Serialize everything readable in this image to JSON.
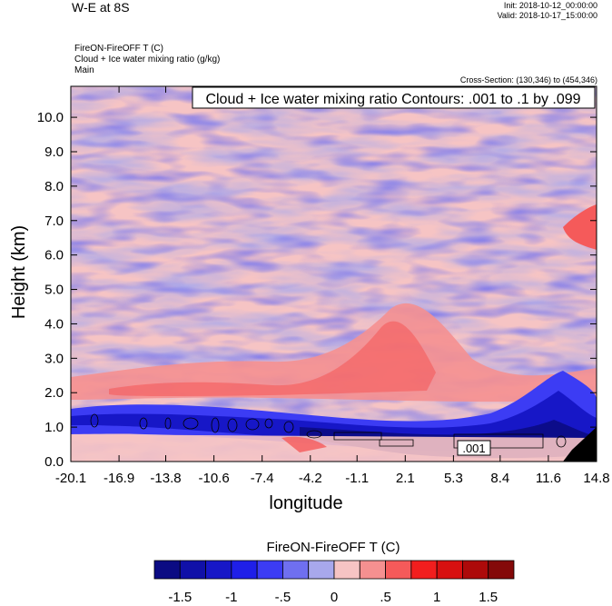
{
  "header": {
    "title": "W-E at 8S",
    "init": "Init: 2018-10-12_00:00:00",
    "valid": "Valid: 2018-10-17_15:00:00",
    "field_line1": "FireON-FireOFF T   (C)",
    "field_line2": "Cloud + Ice water mixing ratio   (g/kg)",
    "field_line3": "Main",
    "cross_section": "Cross-Section: (130,346) to (454,346)"
  },
  "chart_data": {
    "type": "heatmap",
    "title": "W-E at 8S",
    "xlabel": "longitude",
    "ylabel": "Height (km)",
    "x_ticks": [
      "-20.1",
      "-16.9",
      "-13.8",
      "-10.6",
      "-7.4",
      "-4.2",
      "-1.1",
      "2.1",
      "5.3",
      "8.4",
      "11.6",
      "14.8"
    ],
    "y_ticks": [
      "0.0",
      "1.0",
      "2.0",
      "3.0",
      "4.0",
      "5.0",
      "6.0",
      "7.0",
      "8.0",
      "9.0",
      "10.0"
    ],
    "xlim": [
      -20.1,
      14.8
    ],
    "ylim": [
      0.0,
      10.9
    ],
    "contour_annotation": "Cloud + Ice water mixing ratio Contours: .001 to .1 by .099",
    "contour_label": ".001",
    "colorbar": {
      "title": "FireON-FireOFF T  (C)",
      "labels": [
        "-1.5",
        "-1",
        "-.5",
        "0",
        ".5",
        "1",
        "1.5"
      ],
      "colors": [
        "#0b0b83",
        "#1010a8",
        "#1717c7",
        "#1f1fe8",
        "#3c3cf4",
        "#6f6ff0",
        "#a8a8ec",
        "#f6c4c4",
        "#f59090",
        "#f55a5a",
        "#f21e1e",
        "#d81010",
        "#ad0a0a",
        "#840909"
      ]
    }
  }
}
